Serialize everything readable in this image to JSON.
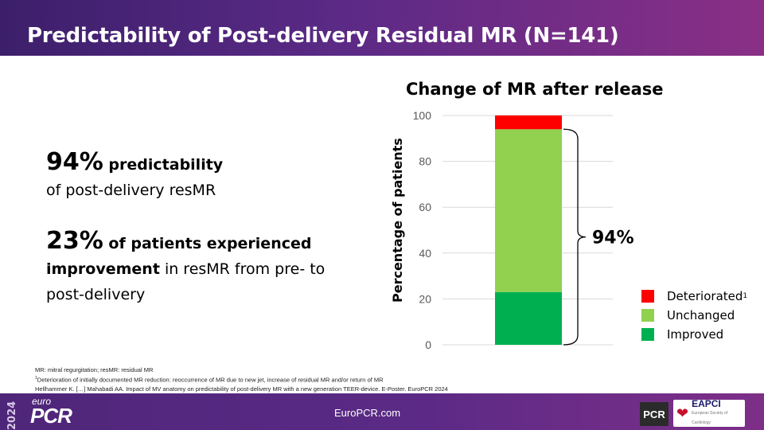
{
  "header": {
    "title": "Predictability of Post-delivery Residual MR (N=141)"
  },
  "left": {
    "stat1_value": "94%",
    "stat1_label": " predictability",
    "stat1_sub": "of post-delivery resMR",
    "stat2_value": "23%",
    "stat2_label": " of patients experienced",
    "stat2_bold_word": "improvement",
    "stat2_rest": " in resMR from pre- to",
    "stat2_end": "post-delivery"
  },
  "chart_data": {
    "type": "bar",
    "stacked": true,
    "title": "Change of MR after release",
    "ylabel": "Percentage of patients",
    "ylim": [
      0,
      100
    ],
    "yticks": [
      "0",
      "20",
      "40",
      "60",
      "80",
      "100"
    ],
    "series": [
      {
        "name": "Improved",
        "value": 23,
        "color": "#00b050"
      },
      {
        "name": "Unchanged",
        "value": 71,
        "color": "#92d050"
      },
      {
        "name": "Deteriorated",
        "value": 6,
        "color": "#ff0000"
      }
    ],
    "bracket_label": "94%",
    "legend": [
      {
        "label": "Deteriorated",
        "sup": "1",
        "color": "#ff0000"
      },
      {
        "label": "Unchanged",
        "sup": "",
        "color": "#92d050"
      },
      {
        "label": "Improved",
        "sup": "",
        "color": "#00b050"
      }
    ],
    "legend_position": "bottom-right",
    "grid": true
  },
  "footnotes": {
    "line1": "MR: mitral regurgitation; resMR: residual MR",
    "line2_sup": "1",
    "line2": "Deterioration of initially documented MR reduction: reoccurrence of MR due to new jet, increase of residual MR and/or return of MR",
    "line3": "Hellhammer K. […] Mahabadi AA. Impact of MV anatomy on predictability of post-delivery MR with a new generation TEER-device. E-Poster. EuroPCR 2024"
  },
  "footer": {
    "year": "2024",
    "euro": "euro",
    "pcr": "PCR",
    "url": "EuroPCR.com",
    "pcr_logo": "PCR",
    "eapci": "EAPCI",
    "eapci_sub": "European Society of Cardiology",
    "eapci_icon": "heart-icon"
  }
}
